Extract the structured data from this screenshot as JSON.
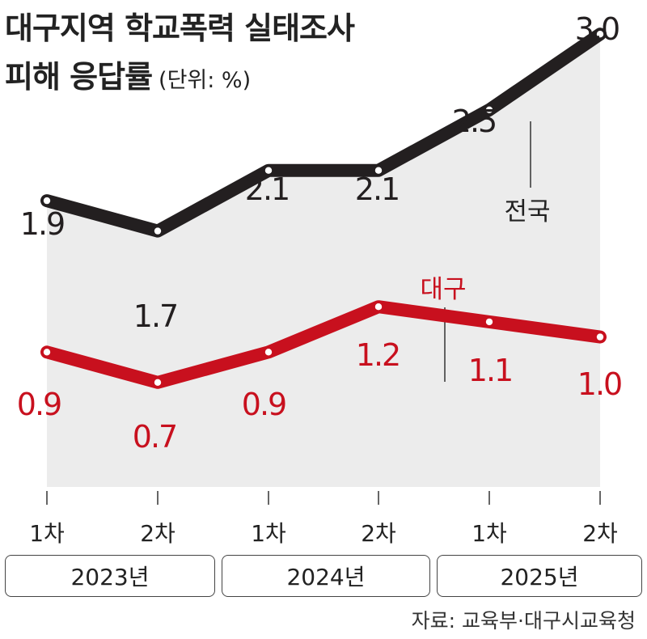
{
  "title": {
    "line1": "대구지역 학교폭력 실태조사",
    "line2": "피해 응답률",
    "unit": "(단위: %)"
  },
  "chart_data": {
    "type": "line",
    "categories": [
      "1차",
      "2차",
      "1차",
      "2차",
      "1차",
      "2차"
    ],
    "groups": [
      {
        "label": "2023년",
        "categories": [
          "1차",
          "2차"
        ]
      },
      {
        "label": "2024년",
        "categories": [
          "1차",
          "2차"
        ]
      },
      {
        "label": "2025년",
        "categories": [
          "1차",
          "2차"
        ]
      }
    ],
    "series": [
      {
        "name": "전국",
        "values": [
          1.9,
          1.7,
          2.1,
          2.1,
          2.5,
          3.0
        ],
        "labels": [
          "1.9",
          "1.7",
          "2.1",
          "2.1",
          "2.5",
          "3.0"
        ],
        "color": "#231f20"
      },
      {
        "name": "대구",
        "values": [
          0.9,
          0.7,
          0.9,
          1.2,
          1.1,
          1.0
        ],
        "labels": [
          "0.9",
          "0.7",
          "0.9",
          "1.2",
          "1.1",
          "1.0"
        ],
        "color": "#c8101e"
      }
    ],
    "area_fill": "#ececec"
  },
  "source": "자료: 교육부·대구시교육청"
}
